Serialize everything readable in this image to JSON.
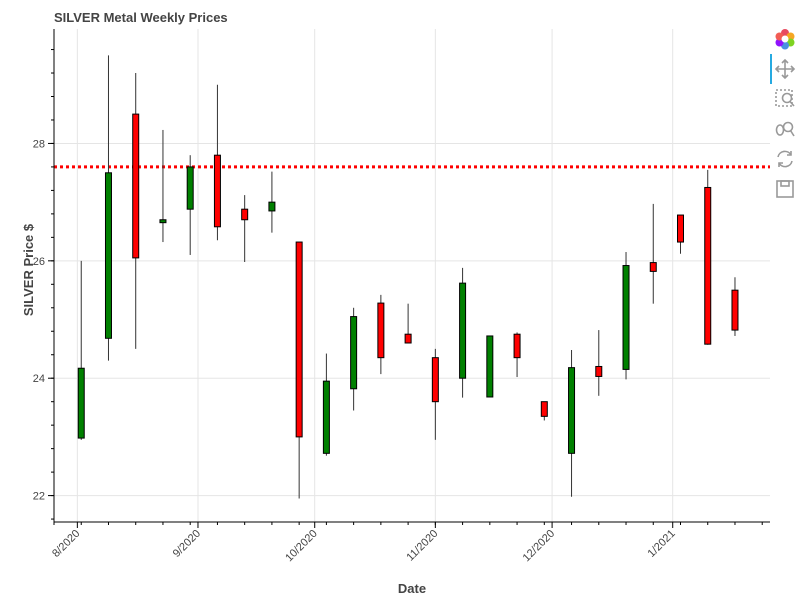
{
  "chart_data": {
    "type": "candlestick",
    "title": "SILVER Metal Weekly Prices",
    "xlabel": "Date",
    "ylabel": "SILVER Price $",
    "x_tick_labels": [
      "8/2020",
      "9/2020",
      "10/2020",
      "11/2020",
      "12/2020",
      "1/2021"
    ],
    "y_ticks": [
      22,
      24,
      26,
      28
    ],
    "ylim": [
      21.55,
      29.95
    ],
    "reference_line": {
      "value": 27.6,
      "color": "#ff0000",
      "style": "dotted"
    },
    "up_color": "#008000",
    "down_color": "#ff0000",
    "candles": [
      {
        "week": "2020-08-02",
        "open": 22.98,
        "high": 26.0,
        "low": 22.95,
        "close": 24.17
      },
      {
        "week": "2020-08-09",
        "open": 24.68,
        "high": 29.5,
        "low": 24.3,
        "close": 27.5
      },
      {
        "week": "2020-08-16",
        "open": 28.5,
        "high": 29.2,
        "low": 24.5,
        "close": 26.05
      },
      {
        "week": "2020-08-23",
        "open": 26.65,
        "high": 28.23,
        "low": 26.32,
        "close": 26.7
      },
      {
        "week": "2020-08-30",
        "open": 26.88,
        "high": 27.8,
        "low": 26.1,
        "close": 27.6
      },
      {
        "week": "2020-09-06",
        "open": 27.8,
        "high": 29.0,
        "low": 26.35,
        "close": 26.58
      },
      {
        "week": "2020-09-13",
        "open": 26.88,
        "high": 27.12,
        "low": 25.98,
        "close": 26.7
      },
      {
        "week": "2020-09-20",
        "open": 26.85,
        "high": 27.52,
        "low": 26.48,
        "close": 27.0
      },
      {
        "week": "2020-09-27",
        "open": 26.32,
        "high": 26.32,
        "low": 21.95,
        "close": 23.0
      },
      {
        "week": "2020-10-04",
        "open": 22.72,
        "high": 24.42,
        "low": 22.68,
        "close": 23.95
      },
      {
        "week": "2020-10-11",
        "open": 23.82,
        "high": 25.2,
        "low": 23.45,
        "close": 25.05
      },
      {
        "week": "2020-10-18",
        "open": 25.28,
        "high": 25.42,
        "low": 24.07,
        "close": 24.35
      },
      {
        "week": "2020-10-25",
        "open": 24.75,
        "high": 25.27,
        "low": 24.6,
        "close": 24.6
      },
      {
        "week": "2020-11-01",
        "open": 24.35,
        "high": 24.5,
        "low": 22.95,
        "close": 23.6
      },
      {
        "week": "2020-11-08",
        "open": 24.0,
        "high": 25.88,
        "low": 23.67,
        "close": 25.62
      },
      {
        "week": "2020-11-15",
        "open": 23.68,
        "high": 24.72,
        "low": 23.68,
        "close": 24.72
      },
      {
        "week": "2020-11-22",
        "open": 24.75,
        "high": 24.78,
        "low": 24.02,
        "close": 24.35
      },
      {
        "week": "2020-11-29",
        "open": 23.6,
        "high": 23.6,
        "low": 23.28,
        "close": 23.35
      },
      {
        "week": "2020-12-06",
        "open": 22.72,
        "high": 24.48,
        "low": 21.98,
        "close": 24.18
      },
      {
        "week": "2020-12-13",
        "open": 24.2,
        "high": 24.82,
        "low": 23.7,
        "close": 24.03
      },
      {
        "week": "2020-12-20",
        "open": 24.15,
        "high": 26.15,
        "low": 23.98,
        "close": 25.92
      },
      {
        "week": "2020-12-27",
        "open": 25.97,
        "high": 26.97,
        "low": 25.27,
        "close": 25.82
      },
      {
        "week": "2021-01-03",
        "open": 26.78,
        "high": 26.78,
        "low": 26.12,
        "close": 26.32
      },
      {
        "week": "2021-01-10",
        "open": 27.25,
        "high": 27.55,
        "low": 24.57,
        "close": 24.58
      },
      {
        "week": "2021-01-17",
        "open": 25.5,
        "high": 25.72,
        "low": 24.72,
        "close": 24.82
      }
    ]
  },
  "toolbar": {
    "icons": [
      "bokeh-logo-icon",
      "pan-icon",
      "box-zoom-icon",
      "wheel-zoom-icon",
      "reset-icon",
      "save-icon"
    ]
  }
}
